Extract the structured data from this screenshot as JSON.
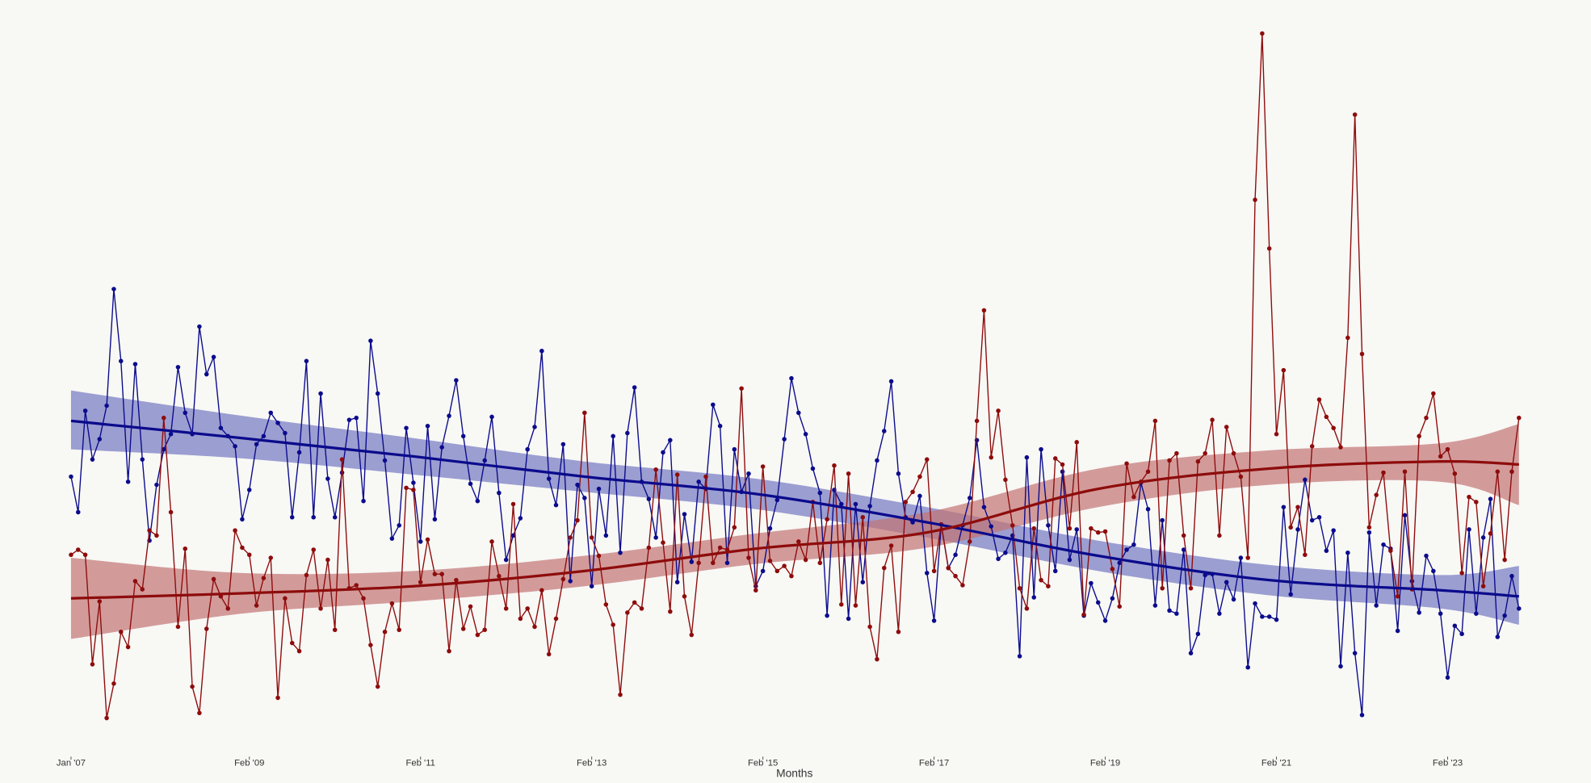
{
  "chart_data": {
    "type": "line",
    "x_label": "Months",
    "x": [
      "2007-01",
      "2007-02",
      "2007-03",
      "2007-04",
      "2007-05",
      "2007-06",
      "2007-07",
      "2007-08",
      "2007-09",
      "2007-10",
      "2007-11",
      "2007-12",
      "2008-01",
      "2008-02",
      "2008-03",
      "2008-04",
      "2008-05",
      "2008-06",
      "2008-07",
      "2008-08",
      "2008-09",
      "2008-10",
      "2008-11",
      "2008-12",
      "2009-01",
      "2009-02",
      "2009-03",
      "2009-04",
      "2009-05",
      "2009-06",
      "2009-07",
      "2009-08",
      "2009-09",
      "2009-10",
      "2009-11",
      "2009-12",
      "2010-01",
      "2010-02",
      "2010-03",
      "2010-04",
      "2010-05",
      "2010-06",
      "2010-07",
      "2010-08",
      "2010-09",
      "2010-10",
      "2010-11",
      "2010-12",
      "2011-01",
      "2011-02",
      "2011-03",
      "2011-04",
      "2011-05",
      "2011-06",
      "2011-07",
      "2011-08",
      "2011-09",
      "2011-10",
      "2011-11",
      "2011-12",
      "2012-01",
      "2012-02",
      "2012-03",
      "2012-04",
      "2012-05",
      "2012-06",
      "2012-07",
      "2012-08",
      "2012-09",
      "2012-10",
      "2012-11",
      "2012-12",
      "2013-01",
      "2013-02",
      "2013-03",
      "2013-04",
      "2013-05",
      "2013-06",
      "2013-07",
      "2013-08",
      "2013-09",
      "2013-10",
      "2013-11",
      "2013-12",
      "2014-01",
      "2014-02",
      "2014-03",
      "2014-04",
      "2014-05",
      "2014-06",
      "2014-07",
      "2014-08",
      "2014-09",
      "2014-10",
      "2014-11",
      "2014-12",
      "2015-01",
      "2015-02",
      "2015-03",
      "2015-04",
      "2015-05",
      "2015-06",
      "2015-07",
      "2015-08",
      "2015-09",
      "2015-10",
      "2015-11",
      "2015-12",
      "2016-01",
      "2016-02",
      "2016-03",
      "2016-04",
      "2016-05",
      "2016-06",
      "2016-07",
      "2016-08",
      "2016-09",
      "2016-10",
      "2016-11",
      "2016-12",
      "2017-01",
      "2017-02",
      "2017-03",
      "2017-04",
      "2017-05",
      "2017-06",
      "2017-07",
      "2017-08",
      "2017-09",
      "2017-10",
      "2017-11",
      "2017-12",
      "2018-01",
      "2018-02",
      "2018-03",
      "2018-04",
      "2018-05",
      "2018-06",
      "2018-07",
      "2018-08",
      "2018-09",
      "2018-10",
      "2018-11",
      "2018-12",
      "2019-01",
      "2019-02",
      "2019-03",
      "2019-04",
      "2019-05",
      "2019-06",
      "2019-07",
      "2019-08",
      "2019-09",
      "2019-10",
      "2019-11",
      "2019-12",
      "2020-01",
      "2020-02",
      "2020-03",
      "2020-04",
      "2020-05",
      "2020-06",
      "2020-07",
      "2020-08",
      "2020-09",
      "2020-10",
      "2020-11",
      "2020-12",
      "2021-01",
      "2021-02",
      "2021-03",
      "2021-04",
      "2021-05",
      "2021-06",
      "2021-07",
      "2021-08",
      "2021-09",
      "2021-10",
      "2021-11",
      "2021-12",
      "2022-01",
      "2022-02",
      "2022-03",
      "2022-04",
      "2022-05",
      "2022-06",
      "2022-07",
      "2022-08",
      "2022-09",
      "2022-10",
      "2022-11",
      "2022-12",
      "2023-01",
      "2023-02",
      "2023-03",
      "2023-04",
      "2023-05",
      "2023-06",
      "2023-07",
      "2023-08",
      "2023-09",
      "2023-10",
      "2023-11",
      "2023-12"
    ],
    "xlim": [
      "2007-01",
      "2023-12"
    ],
    "xticks": [
      {
        "value": "2007-01",
        "label": "Jan '07"
      },
      {
        "value": "2009-02",
        "label": "Feb '09"
      },
      {
        "value": "2011-02",
        "label": "Feb '11"
      },
      {
        "value": "2013-02",
        "label": "Feb '13"
      },
      {
        "value": "2015-02",
        "label": "Feb '15"
      },
      {
        "value": "2017-02",
        "label": "Feb '17"
      },
      {
        "value": "2019-02",
        "label": "Feb '19"
      },
      {
        "value": "2021-02",
        "label": "Feb '21"
      },
      {
        "value": "2023-02",
        "label": "Feb '23"
      }
    ],
    "ylim": [
      0,
      730
    ],
    "series": [
      {
        "color": "#0b0b8c",
        "band_color": "#7378c2",
        "values": [
          275,
          240,
          340,
          292,
          312,
          345,
          460,
          389,
          270,
          386,
          292,
          212,
          267,
          302,
          317,
          383,
          338,
          317,
          423,
          376,
          393,
          323,
          315,
          305,
          233,
          262,
          307,
          315,
          338,
          328,
          318,
          235,
          299,
          389,
          235,
          357,
          273,
          235,
          279,
          331,
          333,
          251,
          409,
          357,
          291,
          214,
          227,
          323,
          269,
          211,
          325,
          233,
          304,
          335,
          370,
          315,
          268,
          251,
          291,
          334,
          259,
          193,
          217,
          234,
          302,
          324,
          399,
          273,
          247,
          307,
          172,
          267,
          254,
          167,
          263,
          217,
          315,
          200,
          318,
          363,
          270,
          253,
          215,
          299,
          311,
          171,
          238,
          191,
          270,
          263,
          346,
          325,
          190,
          302,
          260,
          278,
          167,
          182,
          224,
          252,
          312,
          372,
          338,
          317,
          283,
          259,
          138,
          262,
          248,
          135,
          248,
          171,
          246,
          291,
          320,
          369,
          278,
          235,
          230,
          256,
          180,
          133,
          228,
          185,
          198,
          227,
          254,
          311,
          245,
          226,
          194,
          200,
          217,
          98,
          294,
          156,
          302,
          227,
          182,
          280,
          193,
          223,
          138,
          170,
          151,
          133,
          155,
          190,
          203,
          208,
          269,
          243,
          148,
          232,
          143,
          140,
          203,
          101,
          120,
          178,
          179,
          140,
          171,
          154,
          195,
          87,
          150,
          137,
          137,
          134,
          245,
          159,
          223,
          272,
          232,
          235,
          202,
          222,
          88,
          200,
          101,
          40,
          220,
          148,
          208,
          204,
          123,
          237,
          172,
          141,
          197,
          182,
          140,
          77,
          128,
          120,
          223,
          140,
          215,
          253,
          117,
          138,
          177,
          145
        ],
        "trend": {
          "x": [
            "2007-01",
            "2009-01",
            "2011-01",
            "2013-01",
            "2015-01",
            "2017-01",
            "2019-01",
            "2021-01",
            "2023-01",
            "2023-12"
          ],
          "values": [
            330,
            313,
            295,
            275,
            258,
            230,
            197,
            173,
            163,
            157
          ],
          "lower": [
            302,
            293,
            277,
            260,
            243,
            215,
            182,
            158,
            145,
            129
          ],
          "upper": [
            360,
            335,
            313,
            290,
            273,
            245,
            212,
            188,
            178,
            187
          ]
        }
      },
      {
        "color": "#8e0c0c",
        "band_color": "#c27474",
        "values": [
          198,
          203,
          198,
          90,
          152,
          37,
          71,
          122,
          107,
          172,
          164,
          222,
          217,
          333,
          240,
          127,
          204,
          68,
          42,
          125,
          174,
          157,
          145,
          222,
          205,
          198,
          148,
          175,
          195,
          57,
          155,
          111,
          103,
          178,
          203,
          145,
          193,
          124,
          292,
          165,
          168,
          155,
          109,
          68,
          122,
          150,
          124,
          264,
          262,
          171,
          213,
          179,
          179,
          103,
          173,
          125,
          147,
          119,
          124,
          211,
          177,
          145,
          248,
          135,
          145,
          127,
          163,
          100,
          135,
          174,
          215,
          232,
          338,
          215,
          197,
          149,
          129,
          60,
          141,
          151,
          145,
          205,
          282,
          210,
          142,
          277,
          157,
          119,
          190,
          275,
          190,
          205,
          203,
          225,
          362,
          195,
          163,
          285,
          192,
          182,
          187,
          177,
          211,
          193,
          250,
          190,
          233,
          286,
          149,
          278,
          148,
          235,
          127,
          95,
          185,
          207,
          122,
          250,
          260,
          275,
          292,
          182,
          228,
          185,
          177,
          168,
          211,
          330,
          439,
          294,
          340,
          272,
          227,
          165,
          145,
          224,
          173,
          167,
          293,
          287,
          224,
          309,
          139,
          224,
          220,
          221,
          184,
          147,
          288,
          255,
          270,
          280,
          330,
          165,
          291,
          298,
          217,
          165,
          290,
          298,
          331,
          217,
          324,
          298,
          275,
          195,
          548,
          712,
          500,
          317,
          380,
          225,
          245,
          198,
          305,
          351,
          334,
          323,
          304,
          412,
          632,
          396,
          225,
          257,
          279,
          202,
          157,
          280,
          164,
          315,
          333,
          357,
          295,
          302,
          278,
          180,
          255,
          250,
          167,
          219,
          280,
          193,
          280,
          333
        ],
        "trend": {
          "x": [
            "2007-01",
            "2009-01",
            "2011-01",
            "2013-01",
            "2015-01",
            "2017-01",
            "2019-01",
            "2021-01",
            "2023-01",
            "2023-12"
          ],
          "values": [
            155,
            160,
            167,
            182,
            204,
            220,
            263,
            283,
            290,
            287
          ],
          "lower": [
            115,
            140,
            152,
            167,
            189,
            205,
            245,
            267,
            270,
            247
          ],
          "upper": [
            195,
            180,
            182,
            197,
            219,
            240,
            283,
            301,
            308,
            327
          ]
        }
      }
    ]
  }
}
